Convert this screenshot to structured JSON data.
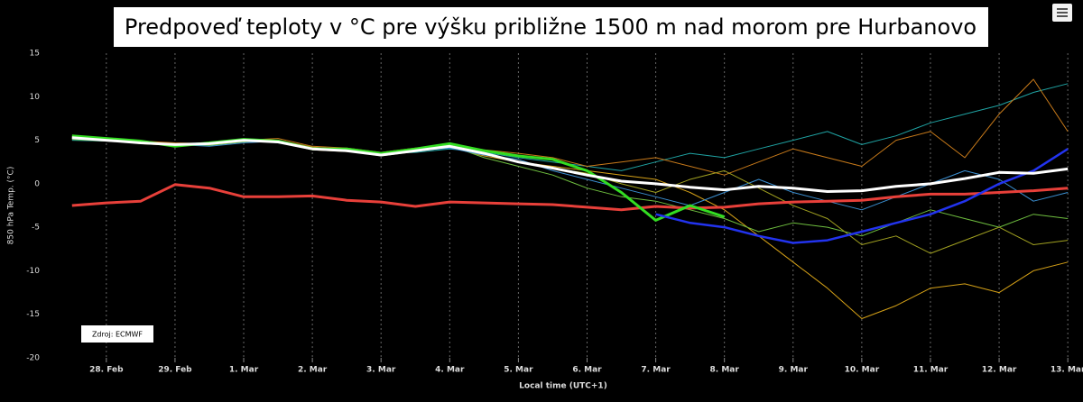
{
  "chart_data": {
    "type": "line",
    "title": "Predpoveď teploty v °C pre výšku približne 1500 m nad morom pre Hurbanovo",
    "ylabel": "850 hPa Temp. (°C)",
    "xlabel": "Local time (UTC+1)",
    "annotation": "Zdroj: ECMWF",
    "x": [
      -0.5,
      0,
      0.5,
      1,
      1.5,
      2,
      2.5,
      3,
      3.5,
      4,
      4.5,
      5,
      5.5,
      6,
      6.5,
      7,
      7.5,
      8,
      8.5,
      9,
      9.5,
      10,
      10.5,
      11,
      11.5,
      12,
      12.5,
      13,
      13.5,
      14
    ],
    "xlim": [
      -0.76,
      14.09
    ],
    "xticks": [
      {
        "value": 0,
        "label": "28. Feb"
      },
      {
        "value": 1,
        "label": "29. Feb"
      },
      {
        "value": 2,
        "label": "1. Mar"
      },
      {
        "value": 3,
        "label": "2. Mar"
      },
      {
        "value": 4,
        "label": "3. Mar"
      },
      {
        "value": 5,
        "label": "4. Mar"
      },
      {
        "value": 6,
        "label": "5. Mar"
      },
      {
        "value": 7,
        "label": "6. Mar"
      },
      {
        "value": 8,
        "label": "7. Mar"
      },
      {
        "value": 9,
        "label": "8. Mar"
      },
      {
        "value": 10,
        "label": "9. Mar"
      },
      {
        "value": 11,
        "label": "10. Mar"
      },
      {
        "value": 12,
        "label": "11. Mar"
      },
      {
        "value": 13,
        "label": "12. Mar"
      },
      {
        "value": 14,
        "label": "13. Mar"
      }
    ],
    "ylim": [
      -20,
      15
    ],
    "yticks": [
      15,
      10,
      5,
      0,
      -5,
      -10,
      -15,
      -20
    ],
    "grid": true,
    "series": [
      {
        "color": "#d4a017",
        "width": 1,
        "values": [
          5.3,
          5.0,
          4.6,
          4.4,
          4.5,
          4.9,
          4.8,
          3.9,
          3.7,
          3.4,
          3.9,
          4.2,
          3.2,
          2.5,
          2.0,
          1.5,
          1.0,
          0.5,
          -1.0,
          -3.0,
          -6.0,
          -9.0,
          -12.0,
          -15.5,
          -14.0,
          -12.0,
          -11.5,
          -12.5,
          -10.0,
          -9.0
        ]
      },
      {
        "color": "#1fa3a3",
        "width": 1,
        "values": [
          5.0,
          4.9,
          4.8,
          4.6,
          4.7,
          5.1,
          4.7,
          4.2,
          3.9,
          3.5,
          3.6,
          4.0,
          3.6,
          3.0,
          2.5,
          2.0,
          1.5,
          2.5,
          3.5,
          3.0,
          4.0,
          5.0,
          6.0,
          4.5,
          5.5,
          7.0,
          8.0,
          9.0,
          10.5,
          11.5
        ]
      },
      {
        "color": "#6fbf3f",
        "width": 1,
        "values": [
          5.1,
          4.9,
          4.7,
          4.5,
          4.4,
          4.8,
          5.0,
          4.1,
          3.8,
          3.2,
          3.7,
          4.4,
          3.0,
          2.0,
          1.0,
          -0.5,
          -1.5,
          -2.0,
          -3.0,
          -4.0,
          -5.5,
          -4.5,
          -5.0,
          -6.0,
          -4.5,
          -3.0,
          -4.0,
          -5.0,
          -3.5,
          -4.0
        ]
      },
      {
        "color": "#c87a1a",
        "width": 1,
        "values": [
          5.4,
          5.1,
          4.9,
          4.7,
          4.6,
          5.0,
          5.2,
          4.3,
          4.1,
          3.6,
          4.1,
          4.5,
          3.9,
          3.5,
          3.0,
          2.0,
          2.5,
          3.0,
          2.0,
          1.0,
          2.5,
          4.0,
          3.0,
          2.0,
          5.0,
          6.0,
          3.0,
          8.0,
          12.0,
          6.0
        ]
      },
      {
        "color": "#3b8fd1",
        "width": 1,
        "values": [
          5.2,
          5.0,
          4.8,
          4.5,
          4.3,
          4.7,
          4.9,
          4.0,
          3.8,
          3.4,
          3.8,
          4.1,
          3.3,
          2.8,
          1.5,
          0.5,
          -0.5,
          -1.5,
          -2.5,
          -1.0,
          0.5,
          -1.0,
          -2.0,
          -3.0,
          -1.5,
          0.0,
          1.5,
          0.5,
          -2.0,
          -1.0
        ]
      },
      {
        "color": "#a0a020",
        "width": 1,
        "values": [
          5.3,
          5.1,
          4.8,
          4.6,
          4.5,
          4.9,
          5.0,
          4.2,
          3.9,
          3.3,
          3.9,
          4.3,
          3.4,
          2.6,
          1.8,
          1.2,
          0.0,
          -1.0,
          0.5,
          1.5,
          -0.5,
          -2.5,
          -4.0,
          -7.0,
          -6.0,
          -8.0,
          -6.5,
          -5.0,
          -7.0,
          -6.5
        ]
      },
      {
        "color": "#e8403a",
        "width": 3,
        "values": [
          -2.5,
          -2.2,
          -2.0,
          -0.1,
          -0.5,
          -1.5,
          -1.5,
          -1.4,
          -1.9,
          -2.1,
          -2.6,
          -2.1,
          -2.2,
          -2.3,
          -2.4,
          -2.7,
          -3.0,
          -2.6,
          -2.8,
          -2.7,
          -2.3,
          -2.1,
          -2.0,
          -1.9,
          -1.5,
          -1.2,
          -1.2,
          -1.0,
          -0.8,
          -0.5
        ]
      },
      {
        "color": "#33dd22",
        "width": 3,
        "values": [
          5.5,
          5.2,
          4.9,
          4.3,
          4.7,
          5.1,
          4.9,
          4.0,
          4.0,
          3.5,
          4.0,
          4.6,
          3.8,
          3.2,
          2.8,
          1.5,
          -1.0,
          -4.2,
          -2.5,
          -3.8,
          null,
          null,
          null,
          null,
          null,
          null,
          null,
          null,
          null,
          null
        ]
      },
      {
        "color": "#2233ee",
        "width": 2.5,
        "values": [
          null,
          null,
          null,
          null,
          null,
          null,
          null,
          null,
          null,
          null,
          null,
          null,
          null,
          null,
          null,
          null,
          null,
          -3.5,
          -4.5,
          -5.0,
          -6.0,
          -6.8,
          -6.5,
          -5.5,
          -4.5,
          -3.5,
          -2.0,
          0.0,
          1.5,
          4.0
        ]
      },
      {
        "color": "#ffffff",
        "width": 3,
        "values": [
          5.3,
          5.0,
          4.7,
          4.5,
          4.6,
          5.0,
          4.8,
          4.0,
          3.8,
          3.3,
          3.8,
          4.3,
          3.5,
          2.5,
          1.8,
          1.0,
          0.3,
          0.0,
          -0.4,
          -0.7,
          -0.3,
          -0.5,
          -0.9,
          -0.8,
          -0.3,
          0.0,
          0.6,
          1.3,
          1.2,
          1.7
        ]
      }
    ]
  }
}
